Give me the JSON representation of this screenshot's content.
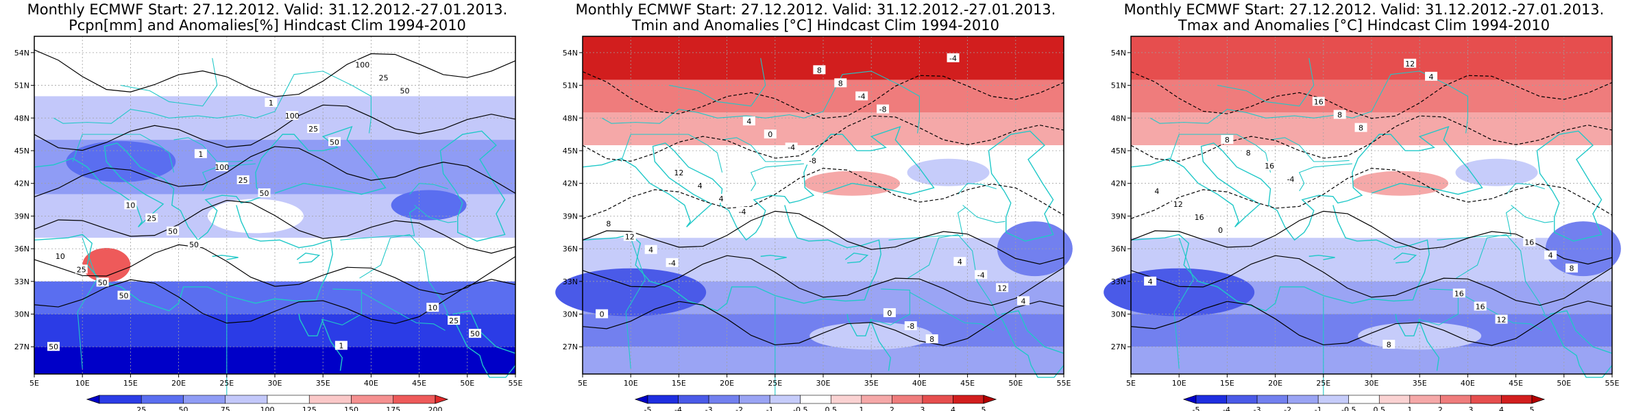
{
  "panels": [
    {
      "title_line1": "Monthly ECMWF Start: 27.12.2012. Valid: 31.12.2012.-27.01.2013.",
      "title_line2": "Pcpn[mm] and Anomalies[%] Hindcast Clim 1994-2010",
      "variable": "precipitation",
      "colorbar": {
        "labels": [
          "25",
          "50",
          "75",
          "100",
          "125",
          "150",
          "175",
          "200"
        ],
        "colors": [
          "#0000c8",
          "#2b3ce6",
          "#5a6ef0",
          "#8f9cf5",
          "#c3c8fa",
          "#ffffff",
          "#fac8c8",
          "#f59090",
          "#ee5a5a",
          "#e02a2a"
        ]
      },
      "contour_labels": [
        "50",
        "50",
        "50",
        "50",
        "50",
        "50",
        "50",
        "50",
        "50",
        "25",
        "25",
        "25",
        "25",
        "25",
        "25",
        "100",
        "100",
        "100",
        "10",
        "10",
        "10",
        "1",
        "1",
        "1"
      ]
    },
    {
      "title_line1": "Monthly ECMWF Start: 27.12.2012. Valid: 31.12.2012.-27.01.2013.",
      "title_line2": "Tmin and Anomalies [°C] Hindcast Clim 1994-2010",
      "variable": "tmin",
      "colorbar": {
        "labels": [
          "-5",
          "-4",
          "-3",
          "-2",
          "-1",
          "-0.5",
          "0.5",
          "1",
          "2",
          "3",
          "4",
          "5"
        ],
        "colors": [
          "#0000c8",
          "#1e2ee0",
          "#4a5ae8",
          "#7280ef",
          "#9aa4f4",
          "#c6ccfa",
          "#ffffff",
          "#fad2d2",
          "#f5a8a8",
          "#ef7c7c",
          "#e64e4e",
          "#d21e1e",
          "#b40000"
        ]
      },
      "contour_labels": [
        "0",
        "-4",
        "-4",
        "-8",
        "-8",
        "-4",
        "4",
        "4",
        "4",
        "-4",
        "-4",
        "8",
        "12",
        "12",
        "4",
        "0",
        "8",
        "-8",
        "-4",
        "8",
        "12",
        "4",
        "8",
        "0",
        "4"
      ]
    },
    {
      "title_line1": "Monthly ECMWF Start: 27.12.2012. Valid: 31.12.2012.-27.01.2013.",
      "title_line2": "Tmax and Anomalies [°C] Hindcast Clim 1994-2010",
      "variable": "tmax",
      "colorbar": {
        "labels": [
          "-5",
          "-4",
          "-3",
          "-2",
          "-1",
          "-0.5",
          "0.5",
          "1",
          "2",
          "3",
          "4",
          "5"
        ],
        "colors": [
          "#0000c8",
          "#1e2ee0",
          "#4a5ae8",
          "#7280ef",
          "#9aa4f4",
          "#c6ccfa",
          "#ffffff",
          "#fad2d2",
          "#f5a8a8",
          "#ef7c7c",
          "#e64e4e",
          "#d21e1e",
          "#b40000"
        ]
      },
      "contour_labels": [
        "4",
        "0",
        "-4",
        "8",
        "4",
        "12",
        "8",
        "16",
        "16",
        "8",
        "12",
        "16",
        "4",
        "12",
        "8",
        "16",
        "8",
        "16",
        "16",
        "4",
        "8"
      ]
    }
  ],
  "axes": {
    "lon_labels": [
      "5E",
      "10E",
      "15E",
      "20E",
      "25E",
      "30E",
      "35E",
      "40E",
      "45E",
      "50E",
      "55E"
    ],
    "lat_labels": [
      "27N",
      "30N",
      "33N",
      "36N",
      "39N",
      "42N",
      "45N",
      "48N",
      "51N",
      "54N"
    ]
  }
}
